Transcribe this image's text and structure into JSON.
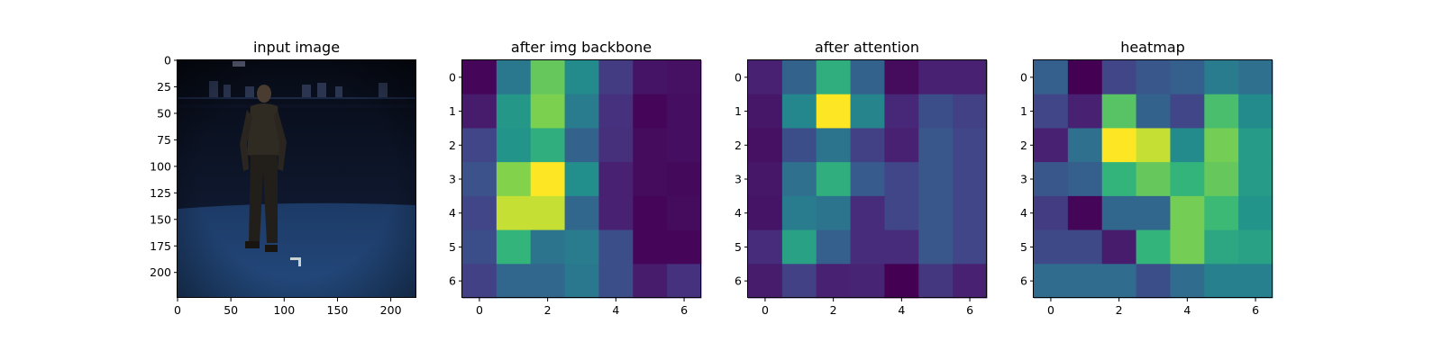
{
  "chart_data": [
    {
      "type": "image",
      "title": "input image",
      "description_colors": {
        "backdrop": "#0f1a33",
        "floor": "#1e3f6e",
        "rig": "#15203a"
      },
      "x_ticks": [
        0,
        50,
        100,
        150,
        200
      ],
      "y_ticks": [
        0,
        25,
        50,
        75,
        100,
        125,
        150,
        175,
        200
      ],
      "xlim": [
        0,
        224
      ],
      "ylim": [
        0,
        224
      ]
    },
    {
      "type": "heatmap",
      "title": "after img backbone",
      "colormap": "viridis",
      "x_ticks": [
        0,
        2,
        4,
        6
      ],
      "y_ticks": [
        0,
        1,
        2,
        3,
        4,
        5,
        6
      ],
      "values": [
        [
          0.02,
          0.5,
          0.82,
          0.6,
          0.22,
          0.07,
          0.06
        ],
        [
          0.1,
          0.65,
          0.85,
          0.52,
          0.18,
          0.02,
          0.05
        ],
        [
          0.26,
          0.64,
          0.72,
          0.4,
          0.17,
          0.04,
          0.05
        ],
        [
          0.32,
          0.86,
          1.0,
          0.62,
          0.12,
          0.04,
          0.03
        ],
        [
          0.26,
          0.94,
          0.94,
          0.42,
          0.12,
          0.02,
          0.04
        ],
        [
          0.3,
          0.74,
          0.48,
          0.52,
          0.3,
          0.02,
          0.02
        ],
        [
          0.24,
          0.42,
          0.42,
          0.5,
          0.3,
          0.1,
          0.18
        ]
      ]
    },
    {
      "type": "heatmap",
      "title": "after attention",
      "colormap": "viridis",
      "x_ticks": [
        0,
        2,
        4,
        6
      ],
      "y_ticks": [
        0,
        1,
        2,
        3,
        4,
        5,
        6
      ],
      "values": [
        [
          0.12,
          0.4,
          0.72,
          0.4,
          0.04,
          0.12,
          0.12
        ],
        [
          0.08,
          0.58,
          1.0,
          0.56,
          0.14,
          0.3,
          0.24
        ],
        [
          0.06,
          0.3,
          0.48,
          0.24,
          0.12,
          0.34,
          0.26
        ],
        [
          0.08,
          0.46,
          0.72,
          0.36,
          0.26,
          0.34,
          0.26
        ],
        [
          0.07,
          0.52,
          0.48,
          0.16,
          0.26,
          0.34,
          0.26
        ],
        [
          0.16,
          0.68,
          0.38,
          0.16,
          0.16,
          0.34,
          0.26
        ],
        [
          0.1,
          0.24,
          0.12,
          0.13,
          0.0,
          0.2,
          0.12
        ]
      ]
    },
    {
      "type": "heatmap",
      "title": "heatmap",
      "colormap": "viridis",
      "x_ticks": [
        0,
        2,
        4,
        6
      ],
      "y_ticks": [
        0,
        1,
        2,
        3,
        4,
        5,
        6
      ],
      "values": [
        [
          0.38,
          0.0,
          0.26,
          0.34,
          0.38,
          0.52,
          0.46
        ],
        [
          0.26,
          0.12,
          0.8,
          0.4,
          0.26,
          0.78,
          0.6
        ],
        [
          0.12,
          0.46,
          1.0,
          0.94,
          0.6,
          0.84,
          0.66
        ],
        [
          0.34,
          0.38,
          0.74,
          0.82,
          0.74,
          0.82,
          0.66
        ],
        [
          0.22,
          0.02,
          0.42,
          0.42,
          0.84,
          0.76,
          0.64
        ],
        [
          0.28,
          0.28,
          0.1,
          0.74,
          0.84,
          0.7,
          0.68
        ],
        [
          0.44,
          0.44,
          0.44,
          0.3,
          0.44,
          0.54,
          0.54
        ]
      ]
    }
  ]
}
